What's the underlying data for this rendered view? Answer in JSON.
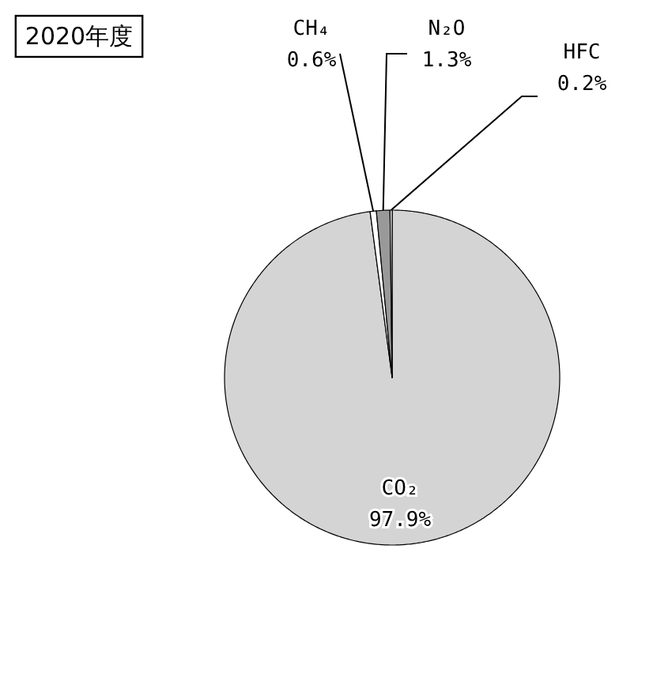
{
  "chart_data": {
    "type": "pie",
    "title": "2020年度",
    "categories": [
      "CO₂",
      "CH₄",
      "N₂O",
      "HFC"
    ],
    "values": [
      97.9,
      0.6,
      1.3,
      0.2
    ],
    "colors": [
      "#d4d4d4",
      "#ffffff",
      "#999999",
      "#ffffff"
    ],
    "value_labels": [
      "97.9%",
      "0.6%",
      "1.3%",
      "0.2%"
    ]
  }
}
